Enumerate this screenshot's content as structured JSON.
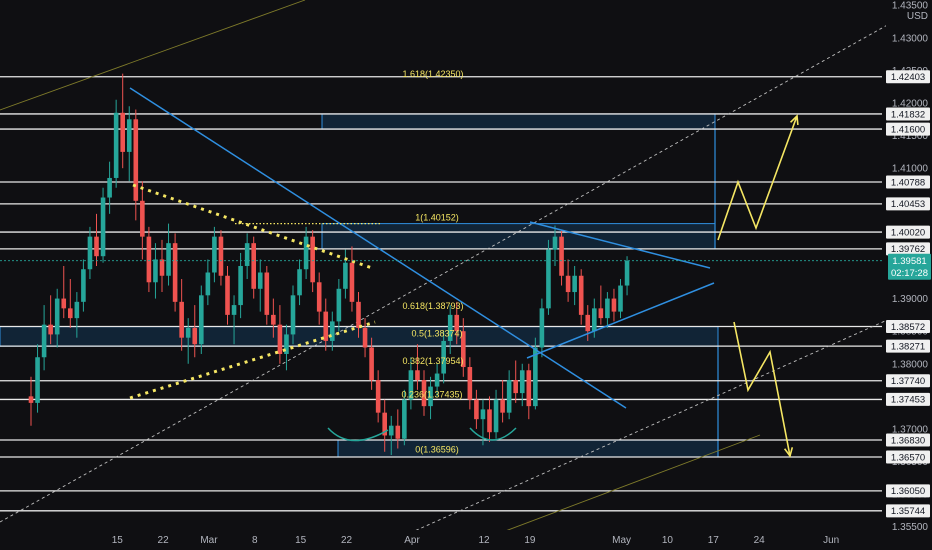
{
  "chart_data": {
    "type": "candlestick",
    "currency": "USD",
    "y_axis": {
      "ticks": [
        "1.43500",
        "1.43000",
        "1.42500",
        "1.42000",
        "1.41500",
        "1.41000",
        "1.40500",
        "1.40000",
        "1.39500",
        "1.39000",
        "1.38500",
        "1.38000",
        "1.37500",
        "1.37000",
        "1.36500",
        "1.36000",
        "1.35500"
      ],
      "tick_values": [
        1.435,
        1.43,
        1.425,
        1.42,
        1.415,
        1.41,
        1.405,
        1.4,
        1.395,
        1.39,
        1.385,
        1.38,
        1.375,
        1.37,
        1.365,
        1.36,
        1.355
      ],
      "range": [
        1.3545,
        1.4358
      ]
    },
    "x_axis": {
      "ticks": [
        "15",
        "22",
        "Mar",
        "8",
        "15",
        "22",
        "Apr",
        "12",
        "19",
        "May",
        "10",
        "17",
        "24",
        "Jun"
      ],
      "tick_days": [
        15,
        22,
        29,
        36,
        43,
        50,
        60,
        71,
        78,
        92,
        99,
        106,
        113,
        124
      ]
    },
    "horizontal_levels": [
      1.42403,
      1.41832,
      1.416,
      1.40788,
      1.40453,
      1.4002,
      1.39762,
      1.38572,
      1.38271,
      1.3774,
      1.37453,
      1.3683,
      1.3657,
      1.3605,
      1.35744
    ],
    "level_labels": [
      "1.42403",
      "1.41832",
      "1.41600",
      "1.40788",
      "1.40453",
      "1.40020",
      "1.39762",
      "1.38572",
      "1.38271",
      "1.37740",
      "1.37453",
      "1.36830",
      "1.36570",
      "1.36050",
      "1.35744"
    ],
    "current_price": {
      "label": "1.39581",
      "countdown": "02:17:28",
      "value": 1.39581
    },
    "fib_labels": [
      "1.618(1.42350)",
      "1(1.40152)",
      "0.618(1.38793)",
      "0.5(1.38374)",
      "0.382(1.37954)",
      "0.236(1.37435)",
      "0(1.36596)"
    ],
    "fib_values": [
      1.4235,
      1.40152,
      1.38793,
      1.38374,
      1.37954,
      1.37435,
      1.36596
    ],
    "candles": [
      {
        "d": 0,
        "o": 1.375,
        "h": 1.378,
        "l": 1.3705,
        "c": 1.374
      },
      {
        "d": 1,
        "o": 1.374,
        "h": 1.383,
        "l": 1.3725,
        "c": 1.381
      },
      {
        "d": 2,
        "o": 1.381,
        "h": 1.389,
        "l": 1.379,
        "c": 1.386
      },
      {
        "d": 3,
        "o": 1.386,
        "h": 1.3905,
        "l": 1.383,
        "c": 1.3845
      },
      {
        "d": 4,
        "o": 1.3845,
        "h": 1.3915,
        "l": 1.3825,
        "c": 1.39
      },
      {
        "d": 5,
        "o": 1.39,
        "h": 1.395,
        "l": 1.387,
        "c": 1.3885
      },
      {
        "d": 6,
        "o": 1.3885,
        "h": 1.393,
        "l": 1.3855,
        "c": 1.387
      },
      {
        "d": 7,
        "o": 1.387,
        "h": 1.391,
        "l": 1.384,
        "c": 1.3895
      },
      {
        "d": 8,
        "o": 1.3895,
        "h": 1.396,
        "l": 1.388,
        "c": 1.3945
      },
      {
        "d": 9,
        "o": 1.3945,
        "h": 1.401,
        "l": 1.393,
        "c": 1.3995
      },
      {
        "d": 10,
        "o": 1.3995,
        "h": 1.403,
        "l": 1.395,
        "c": 1.3965
      },
      {
        "d": 11,
        "o": 1.3965,
        "h": 1.407,
        "l": 1.3955,
        "c": 1.4055
      },
      {
        "d": 12,
        "o": 1.4055,
        "h": 1.411,
        "l": 1.403,
        "c": 1.4085
      },
      {
        "d": 13,
        "o": 1.4085,
        "h": 1.4205,
        "l": 1.407,
        "c": 1.4185
      },
      {
        "d": 14,
        "o": 1.4185,
        "h": 1.4245,
        "l": 1.41,
        "c": 1.4125
      },
      {
        "d": 15,
        "o": 1.4125,
        "h": 1.4195,
        "l": 1.408,
        "c": 1.4175
      },
      {
        "d": 16,
        "o": 1.4175,
        "h": 1.419,
        "l": 1.402,
        "c": 1.405
      },
      {
        "d": 17,
        "o": 1.405,
        "h": 1.408,
        "l": 1.396,
        "c": 1.3995
      },
      {
        "d": 18,
        "o": 1.3995,
        "h": 1.401,
        "l": 1.391,
        "c": 1.3925
      },
      {
        "d": 19,
        "o": 1.3925,
        "h": 1.3985,
        "l": 1.39,
        "c": 1.396
      },
      {
        "d": 20,
        "o": 1.396,
        "h": 1.399,
        "l": 1.391,
        "c": 1.3935
      },
      {
        "d": 21,
        "o": 1.3935,
        "h": 1.4015,
        "l": 1.392,
        "c": 1.3985
      },
      {
        "d": 22,
        "o": 1.3985,
        "h": 1.4,
        "l": 1.388,
        "c": 1.3895
      },
      {
        "d": 23,
        "o": 1.3895,
        "h": 1.393,
        "l": 1.382,
        "c": 1.384
      },
      {
        "d": 24,
        "o": 1.384,
        "h": 1.387,
        "l": 1.38,
        "c": 1.3855
      },
      {
        "d": 25,
        "o": 1.3855,
        "h": 1.389,
        "l": 1.381,
        "c": 1.383
      },
      {
        "d": 26,
        "o": 1.383,
        "h": 1.392,
        "l": 1.3815,
        "c": 1.3905
      },
      {
        "d": 27,
        "o": 1.3905,
        "h": 1.396,
        "l": 1.389,
        "c": 1.394
      },
      {
        "d": 28,
        "o": 1.394,
        "h": 1.401,
        "l": 1.3925,
        "c": 1.3995
      },
      {
        "d": 29,
        "o": 1.3995,
        "h": 1.4005,
        "l": 1.392,
        "c": 1.3935
      },
      {
        "d": 30,
        "o": 1.3935,
        "h": 1.395,
        "l": 1.386,
        "c": 1.3875
      },
      {
        "d": 31,
        "o": 1.3875,
        "h": 1.3905,
        "l": 1.383,
        "c": 1.389
      },
      {
        "d": 32,
        "o": 1.389,
        "h": 1.397,
        "l": 1.387,
        "c": 1.395
      },
      {
        "d": 33,
        "o": 1.395,
        "h": 1.4,
        "l": 1.393,
        "c": 1.3985
      },
      {
        "d": 34,
        "o": 1.3985,
        "h": 1.3995,
        "l": 1.39,
        "c": 1.3915
      },
      {
        "d": 35,
        "o": 1.3915,
        "h": 1.396,
        "l": 1.388,
        "c": 1.394
      },
      {
        "d": 36,
        "o": 1.394,
        "h": 1.395,
        "l": 1.386,
        "c": 1.3875
      },
      {
        "d": 37,
        "o": 1.3875,
        "h": 1.39,
        "l": 1.384,
        "c": 1.386
      },
      {
        "d": 38,
        "o": 1.386,
        "h": 1.389,
        "l": 1.38,
        "c": 1.3815
      },
      {
        "d": 39,
        "o": 1.3815,
        "h": 1.386,
        "l": 1.379,
        "c": 1.3845
      },
      {
        "d": 40,
        "o": 1.3845,
        "h": 1.392,
        "l": 1.383,
        "c": 1.3905
      },
      {
        "d": 41,
        "o": 1.3905,
        "h": 1.396,
        "l": 1.389,
        "c": 1.3945
      },
      {
        "d": 42,
        "o": 1.3945,
        "h": 1.401,
        "l": 1.393,
        "c": 1.3995
      },
      {
        "d": 43,
        "o": 1.3995,
        "h": 1.4005,
        "l": 1.391,
        "c": 1.3925
      },
      {
        "d": 44,
        "o": 1.3925,
        "h": 1.394,
        "l": 1.386,
        "c": 1.388
      },
      {
        "d": 45,
        "o": 1.388,
        "h": 1.39,
        "l": 1.382,
        "c": 1.3835
      },
      {
        "d": 46,
        "o": 1.3835,
        "h": 1.388,
        "l": 1.382,
        "c": 1.3865
      },
      {
        "d": 47,
        "o": 1.3865,
        "h": 1.393,
        "l": 1.385,
        "c": 1.3915
      },
      {
        "d": 48,
        "o": 1.3915,
        "h": 1.3975,
        "l": 1.39,
        "c": 1.3955
      },
      {
        "d": 49,
        "o": 1.3955,
        "h": 1.398,
        "l": 1.388,
        "c": 1.3895
      },
      {
        "d": 50,
        "o": 1.3895,
        "h": 1.391,
        "l": 1.384,
        "c": 1.3855
      },
      {
        "d": 51,
        "o": 1.3855,
        "h": 1.387,
        "l": 1.381,
        "c": 1.3825
      },
      {
        "d": 52,
        "o": 1.3825,
        "h": 1.384,
        "l": 1.376,
        "c": 1.3775
      },
      {
        "d": 53,
        "o": 1.3775,
        "h": 1.379,
        "l": 1.371,
        "c": 1.3725
      },
      {
        "d": 54,
        "o": 1.3725,
        "h": 1.3745,
        "l": 1.3665,
        "c": 1.369
      },
      {
        "d": 55,
        "o": 1.369,
        "h": 1.372,
        "l": 1.366,
        "c": 1.3705
      },
      {
        "d": 56,
        "o": 1.3705,
        "h": 1.373,
        "l": 1.367,
        "c": 1.3685
      },
      {
        "d": 57,
        "o": 1.3685,
        "h": 1.376,
        "l": 1.3675,
        "c": 1.3745
      },
      {
        "d": 58,
        "o": 1.3745,
        "h": 1.381,
        "l": 1.373,
        "c": 1.379
      },
      {
        "d": 59,
        "o": 1.379,
        "h": 1.383,
        "l": 1.376,
        "c": 1.3775
      },
      {
        "d": 60,
        "o": 1.3775,
        "h": 1.379,
        "l": 1.372,
        "c": 1.3735
      },
      {
        "d": 61,
        "o": 1.3735,
        "h": 1.378,
        "l": 1.3715,
        "c": 1.3765
      },
      {
        "d": 62,
        "o": 1.3765,
        "h": 1.38,
        "l": 1.375,
        "c": 1.3785
      },
      {
        "d": 63,
        "o": 1.3785,
        "h": 1.385,
        "l": 1.377,
        "c": 1.3835
      },
      {
        "d": 64,
        "o": 1.3835,
        "h": 1.389,
        "l": 1.3815,
        "c": 1.3875
      },
      {
        "d": 65,
        "o": 1.3875,
        "h": 1.3895,
        "l": 1.383,
        "c": 1.385
      },
      {
        "d": 66,
        "o": 1.385,
        "h": 1.387,
        "l": 1.378,
        "c": 1.3795
      },
      {
        "d": 67,
        "o": 1.3795,
        "h": 1.381,
        "l": 1.373,
        "c": 1.3745
      },
      {
        "d": 68,
        "o": 1.3745,
        "h": 1.376,
        "l": 1.37,
        "c": 1.3715
      },
      {
        "d": 69,
        "o": 1.3715,
        "h": 1.3745,
        "l": 1.3675,
        "c": 1.373
      },
      {
        "d": 70,
        "o": 1.373,
        "h": 1.375,
        "l": 1.368,
        "c": 1.3695
      },
      {
        "d": 71,
        "o": 1.3695,
        "h": 1.376,
        "l": 1.3685,
        "c": 1.3745
      },
      {
        "d": 72,
        "o": 1.3745,
        "h": 1.3775,
        "l": 1.371,
        "c": 1.3725
      },
      {
        "d": 73,
        "o": 1.3725,
        "h": 1.379,
        "l": 1.3715,
        "c": 1.3775
      },
      {
        "d": 74,
        "o": 1.3775,
        "h": 1.3805,
        "l": 1.374,
        "c": 1.3755
      },
      {
        "d": 75,
        "o": 1.3755,
        "h": 1.38,
        "l": 1.3735,
        "c": 1.379
      },
      {
        "d": 76,
        "o": 1.379,
        "h": 1.38,
        "l": 1.3715,
        "c": 1.3735
      },
      {
        "d": 77,
        "o": 1.3735,
        "h": 1.384,
        "l": 1.373,
        "c": 1.3825
      },
      {
        "d": 78,
        "o": 1.3825,
        "h": 1.39,
        "l": 1.381,
        "c": 1.3885
      },
      {
        "d": 79,
        "o": 1.3885,
        "h": 1.399,
        "l": 1.3875,
        "c": 1.3975
      },
      {
        "d": 80,
        "o": 1.3975,
        "h": 1.4012,
        "l": 1.395,
        "c": 1.3995
      },
      {
        "d": 81,
        "o": 1.3995,
        "h": 1.4005,
        "l": 1.392,
        "c": 1.3935
      },
      {
        "d": 82,
        "o": 1.3935,
        "h": 1.396,
        "l": 1.3895,
        "c": 1.391
      },
      {
        "d": 83,
        "o": 1.391,
        "h": 1.395,
        "l": 1.389,
        "c": 1.3935
      },
      {
        "d": 84,
        "o": 1.3935,
        "h": 1.3945,
        "l": 1.386,
        "c": 1.3875
      },
      {
        "d": 85,
        "o": 1.3875,
        "h": 1.389,
        "l": 1.3835,
        "c": 1.385
      },
      {
        "d": 86,
        "o": 1.385,
        "h": 1.39,
        "l": 1.384,
        "c": 1.3885
      },
      {
        "d": 87,
        "o": 1.3885,
        "h": 1.392,
        "l": 1.386,
        "c": 1.387
      },
      {
        "d": 88,
        "o": 1.387,
        "h": 1.391,
        "l": 1.3855,
        "c": 1.39
      },
      {
        "d": 89,
        "o": 1.39,
        "h": 1.3915,
        "l": 1.3865,
        "c": 1.388
      },
      {
        "d": 90,
        "o": 1.388,
        "h": 1.393,
        "l": 1.387,
        "c": 1.392
      },
      {
        "d": 91,
        "o": 1.392,
        "h": 1.3965,
        "l": 1.3905,
        "c": 1.3958
      }
    ]
  }
}
